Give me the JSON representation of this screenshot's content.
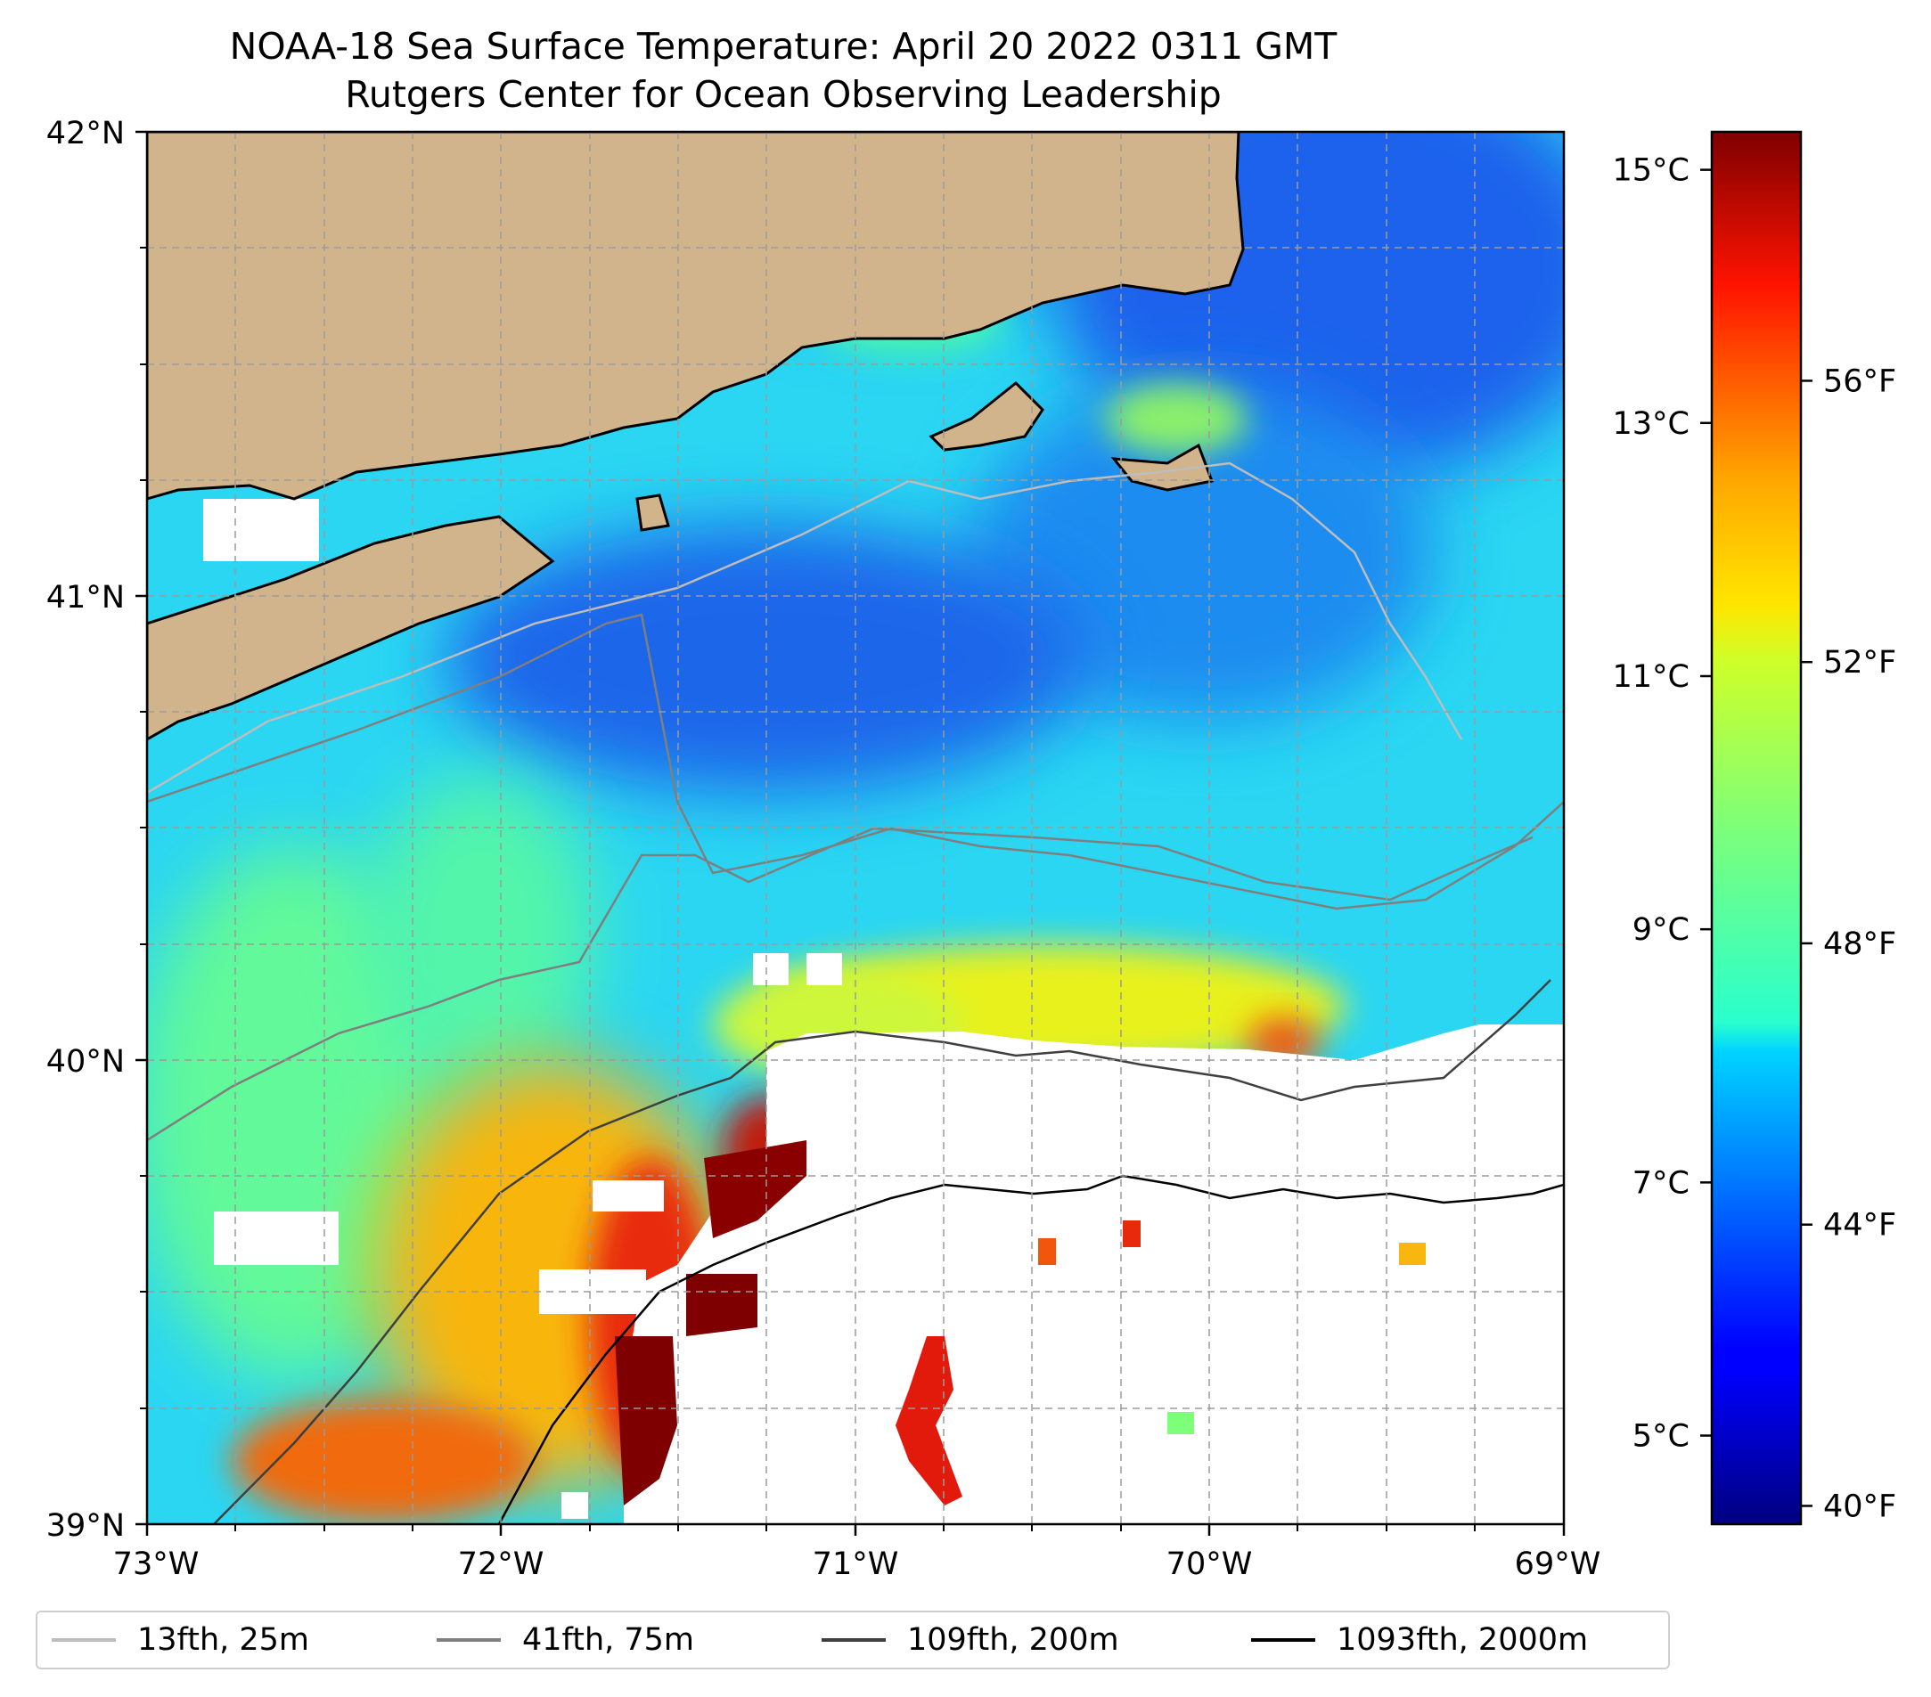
{
  "title": {
    "line1": "NOAA-18 Sea Surface Temperature: April 20 2022 0311 GMT",
    "line2": "Rutgers Center for Ocean Observing Leadership"
  },
  "map": {
    "lat_ticks": [
      "42°N",
      "41°N",
      "40°N",
      "39°N"
    ],
    "lon_ticks": [
      "73°W",
      "72°W",
      "71°W",
      "70°W",
      "69°W"
    ],
    "lat_range": [
      39,
      42
    ],
    "lon_range": [
      -73,
      -69
    ],
    "gridlines": true,
    "land_color": "#d1b48c",
    "nodata_color": "#ffffff"
  },
  "colorbar": {
    "celsius_ticks": [
      "15°C",
      "13°C",
      "11°C",
      "9°C",
      "7°C",
      "5°C"
    ],
    "celsius_values": [
      15,
      13,
      11,
      9,
      7,
      5
    ],
    "fahrenheit_ticks": [
      "56°F",
      "52°F",
      "48°F",
      "44°F",
      "40°F"
    ],
    "fahrenheit_values": [
      56,
      52,
      48,
      44,
      40
    ],
    "range_celsius": [
      4.3,
      15.3
    ],
    "colormap": "jet"
  },
  "legend": {
    "items": [
      {
        "label": "13fth, 25m",
        "color": "#bdbdbd"
      },
      {
        "label": "41fth, 75m",
        "color": "#7f7f7f"
      },
      {
        "label": "109fth, 200m",
        "color": "#3f3f3f"
      },
      {
        "label": "1093fth, 2000m",
        "color": "#000000"
      }
    ]
  }
}
